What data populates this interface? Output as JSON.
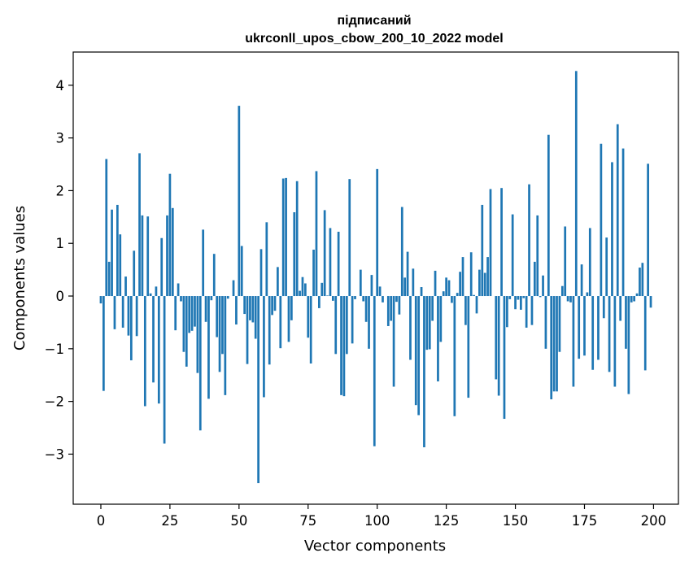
{
  "chart_data": {
    "type": "bar",
    "title_lines": [
      "підписаний",
      "ukrconll_upos_cbow_200_10_2022 model"
    ],
    "xlabel": "Vector components",
    "ylabel": "Components values",
    "xlim": [
      -10,
      209
    ],
    "ylim": [
      -3.95,
      4.63
    ],
    "xticks": [
      0,
      25,
      50,
      75,
      100,
      125,
      150,
      175,
      200
    ],
    "xtick_labels": [
      "0",
      "25",
      "50",
      "75",
      "100",
      "125",
      "150",
      "175",
      "200"
    ],
    "yticks": [
      -3,
      -2,
      -1,
      0,
      1,
      2,
      3,
      4
    ],
    "ytick_labels": [
      "−3",
      "−2",
      "−1",
      "0",
      "1",
      "2",
      "3",
      "4"
    ],
    "bar_color": "#1f77b4",
    "x": [
      0,
      1,
      2,
      3,
      4,
      5,
      6,
      7,
      8,
      9,
      10,
      11,
      12,
      13,
      14,
      15,
      16,
      17,
      18,
      19,
      20,
      21,
      22,
      23,
      24,
      25,
      26,
      27,
      28,
      29,
      30,
      31,
      32,
      33,
      34,
      35,
      36,
      37,
      38,
      39,
      40,
      41,
      42,
      43,
      44,
      45,
      46,
      47,
      48,
      49,
      50,
      51,
      52,
      53,
      54,
      55,
      56,
      57,
      58,
      59,
      60,
      61,
      62,
      63,
      64,
      65,
      66,
      67,
      68,
      69,
      70,
      71,
      72,
      73,
      74,
      75,
      76,
      77,
      78,
      79,
      80,
      81,
      82,
      83,
      84,
      85,
      86,
      87,
      88,
      89,
      90,
      91,
      92,
      93,
      94,
      95,
      96,
      97,
      98,
      99,
      100,
      101,
      102,
      103,
      104,
      105,
      106,
      107,
      108,
      109,
      110,
      111,
      112,
      113,
      114,
      115,
      116,
      117,
      118,
      119,
      120,
      121,
      122,
      123,
      124,
      125,
      126,
      127,
      128,
      129,
      130,
      131,
      132,
      133,
      134,
      135,
      136,
      137,
      138,
      139,
      140,
      141,
      142,
      143,
      144,
      145,
      146,
      147,
      148,
      149,
      150,
      151,
      152,
      153,
      154,
      155,
      156,
      157,
      158,
      159,
      160,
      161,
      162,
      163,
      164,
      165,
      166,
      167,
      168,
      169,
      170,
      171,
      172,
      173,
      174,
      175,
      176,
      177,
      178,
      179,
      180,
      181,
      182,
      183,
      184,
      185,
      186,
      187,
      188,
      189,
      190,
      191,
      192,
      193,
      194,
      195,
      196,
      197,
      198,
      199
    ],
    "values": [
      -0.14,
      -1.8,
      2.6,
      0.65,
      1.64,
      -0.63,
      1.73,
      1.17,
      -0.6,
      0.37,
      -0.75,
      -1.22,
      0.86,
      -0.76,
      2.71,
      1.53,
      -2.09,
      1.51,
      0.05,
      -1.64,
      0.18,
      -2.04,
      1.1,
      -2.8,
      1.53,
      2.32,
      1.67,
      -0.65,
      0.24,
      -0.1,
      -1.06,
      -1.34,
      -0.7,
      -0.66,
      -0.58,
      -1.46,
      -2.55,
      1.26,
      -0.49,
      -1.95,
      -0.08,
      0.8,
      -0.78,
      -1.44,
      -1.1,
      -1.88,
      -0.05,
      0.0,
      0.3,
      -0.54,
      3.61,
      0.95,
      -0.34,
      -1.29,
      -0.46,
      -0.5,
      -0.81,
      -3.55,
      0.89,
      -1.92,
      1.4,
      -1.3,
      -0.36,
      -0.28,
      0.55,
      -0.99,
      2.23,
      2.24,
      -0.87,
      -0.46,
      1.59,
      2.18,
      0.1,
      0.36,
      0.24,
      -0.79,
      -1.28,
      0.88,
      2.37,
      -0.23,
      0.25,
      1.63,
      0.01,
      1.29,
      -0.09,
      -1.1,
      1.22,
      -1.88,
      -1.9,
      -1.1,
      2.22,
      -0.9,
      -0.06,
      0.0,
      0.5,
      -0.1,
      -0.49,
      -1.0,
      0.4,
      -2.85,
      2.41,
      0.18,
      -0.12,
      0.0,
      -0.57,
      -0.47,
      -1.72,
      -0.11,
      -0.35,
      1.69,
      0.35,
      0.84,
      -1.21,
      0.52,
      -2.07,
      -2.26,
      0.17,
      -2.87,
      -1.02,
      -1.01,
      -0.47,
      0.48,
      -1.62,
      -0.87,
      0.09,
      0.35,
      0.3,
      -0.13,
      -2.28,
      0.06,
      0.46,
      0.74,
      -0.55,
      -1.93,
      0.83,
      0.02,
      -0.33,
      0.5,
      1.73,
      0.44,
      0.74,
      2.03,
      0.0,
      -1.58,
      -1.89,
      2.05,
      -2.33,
      -0.59,
      -0.06,
      1.55,
      -0.25,
      -0.07,
      -0.26,
      -0.04,
      -0.6,
      2.12,
      -0.55,
      0.65,
      1.53,
      -0.02,
      0.39,
      -1.0,
      3.06,
      -1.96,
      -1.81,
      -1.81,
      -1.06,
      0.19,
      1.32,
      -0.1,
      -0.12,
      -1.72,
      4.27,
      -1.19,
      0.6,
      -1.13,
      0.07,
      1.29,
      -1.4,
      0.0,
      -1.21,
      2.89,
      -0.42,
      1.11,
      -1.44,
      2.54,
      -1.72,
      3.26,
      -0.47,
      2.8,
      -1.0,
      -1.86,
      -0.12,
      -0.1,
      0.05,
      0.54,
      0.63,
      -1.41,
      2.51,
      -0.22
    ]
  }
}
